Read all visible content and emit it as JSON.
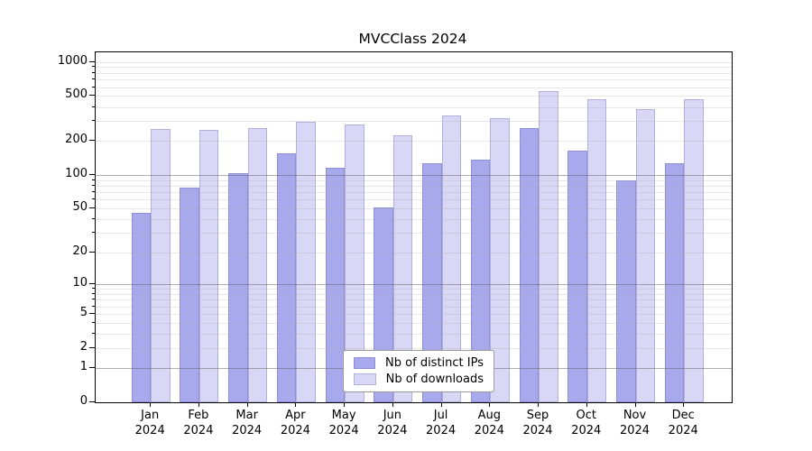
{
  "chart_data": {
    "type": "bar",
    "title": "MVCClass 2024",
    "categories": [
      "Jan 2024",
      "Feb 2024",
      "Mar 2024",
      "Apr 2024",
      "May 2024",
      "Jun 2024",
      "Jul 2024",
      "Aug 2024",
      "Sep 2024",
      "Oct 2024",
      "Nov 2024",
      "Dec 2024"
    ],
    "series": [
      {
        "name": "Nb of distinct IPs",
        "color": "#a8a8ec",
        "values": [
          46,
          77,
          105,
          155,
          117,
          51,
          127,
          137,
          260,
          166,
          90,
          127
        ]
      },
      {
        "name": "Nb of downloads",
        "color": "#d8d8f6",
        "values": [
          255,
          253,
          261,
          300,
          282,
          228,
          338,
          318,
          556,
          469,
          388,
          469
        ]
      }
    ],
    "xlabel": "",
    "ylabel": "",
    "y_ticks": [
      0,
      1,
      2,
      5,
      10,
      20,
      50,
      100,
      200,
      500,
      1000
    ],
    "ylim": [
      0,
      1000
    ],
    "y_scale": "log1p",
    "grid": true,
    "legend_position": "lower-center-inside"
  }
}
